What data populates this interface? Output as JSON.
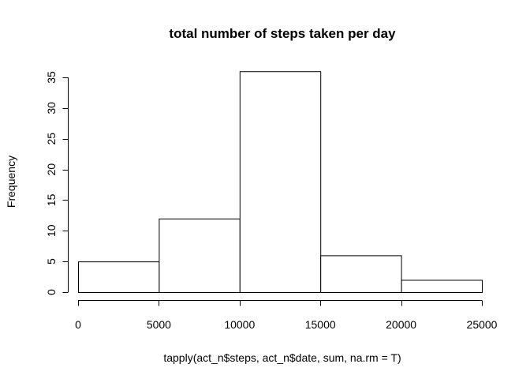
{
  "chart_data": {
    "type": "bar",
    "title": "total number of steps taken per day",
    "xlabel": "tapply(act_n$steps, act_n$date, sum, na.rm = T)",
    "ylabel": "Frequency",
    "bins": [
      {
        "from": 0,
        "to": 5000,
        "count": 5
      },
      {
        "from": 5000,
        "to": 10000,
        "count": 12
      },
      {
        "from": 10000,
        "to": 15000,
        "count": 36
      },
      {
        "from": 15000,
        "to": 20000,
        "count": 6
      },
      {
        "from": 20000,
        "to": 25000,
        "count": 2
      }
    ],
    "xlim": [
      0,
      25000
    ],
    "ylim": [
      0,
      35
    ],
    "x_ticks": [
      0,
      5000,
      10000,
      15000,
      20000,
      25000
    ],
    "x_tick_labels": [
      "0",
      "5000",
      "10000",
      "15000",
      "20000",
      "25000"
    ],
    "y_ticks": [
      0,
      5,
      10,
      15,
      20,
      25,
      30,
      35
    ],
    "y_tick_labels": [
      "0",
      "5",
      "10",
      "15",
      "20",
      "25",
      "30",
      "35"
    ],
    "grid": false,
    "bar_fill": "#ffffff",
    "bar_stroke": "#000000"
  }
}
